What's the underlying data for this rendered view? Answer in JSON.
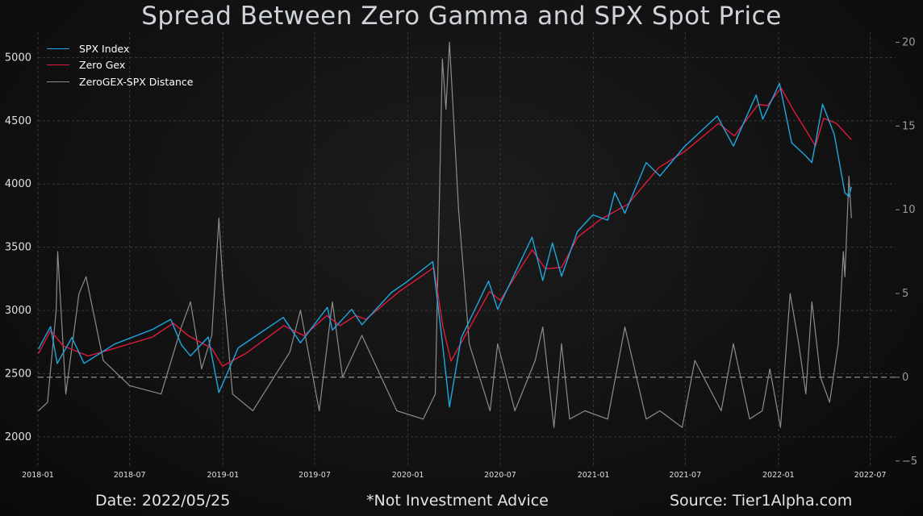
{
  "chart_data": {
    "type": "line",
    "title": "Spread Between Zero Gamma and SPX Spot Price",
    "x_ticks": [
      "2018-01",
      "2018-07",
      "2019-01",
      "2019-07",
      "2020-01",
      "2020-07",
      "2021-01",
      "2021-07",
      "2022-01",
      "2022-07"
    ],
    "y_left_ticks": [
      2000,
      2500,
      3000,
      3500,
      4000,
      4500,
      5000
    ],
    "y_right_ticks": [
      -5,
      0,
      5,
      10,
      15,
      20
    ],
    "ylim_left": [
      1770,
      5200
    ],
    "ylim_right": [
      -5.3,
      20.6
    ],
    "xlim": [
      "2018-01-01",
      "2022-08-20"
    ],
    "grid": true,
    "legend_position": "top-left",
    "zero_line_right": 0,
    "series": [
      {
        "name": "SPX Index",
        "axis": "left",
        "color": "#1ea7e0",
        "x": [
          "2018-01-02",
          "2018-01-26",
          "2018-02-08",
          "2018-03-09",
          "2018-04-02",
          "2018-06-01",
          "2018-08-15",
          "2018-09-20",
          "2018-10-11",
          "2018-10-29",
          "2018-12-03",
          "2018-12-24",
          "2019-01-31",
          "2019-04-30",
          "2019-06-03",
          "2019-07-26",
          "2019-08-05",
          "2019-09-12",
          "2019-10-02",
          "2019-11-29",
          "2019-12-31",
          "2020-02-19",
          "2020-03-09",
          "2020-03-23",
          "2020-04-15",
          "2020-06-08",
          "2020-06-26",
          "2020-09-02",
          "2020-09-23",
          "2020-10-12",
          "2020-10-30",
          "2020-11-30",
          "2020-12-31",
          "2021-01-29",
          "2021-02-12",
          "2021-03-04",
          "2021-04-15",
          "2021-05-12",
          "2021-06-30",
          "2021-09-02",
          "2021-10-04",
          "2021-11-18",
          "2021-12-01",
          "2022-01-03",
          "2022-01-27",
          "2022-02-23",
          "2022-03-08",
          "2022-03-29",
          "2022-04-21",
          "2022-05-12",
          "2022-05-20",
          "2022-05-25"
        ],
        "values": [
          2695,
          2872,
          2581,
          2786,
          2581,
          2734,
          2850,
          2930,
          2728,
          2641,
          2790,
          2351,
          2704,
          2945,
          2744,
          3025,
          2844,
          3009,
          2887,
          3141,
          3230,
          3386,
          2746,
          2237,
          2783,
          3232,
          3009,
          3580,
          3237,
          3534,
          3270,
          3622,
          3756,
          3714,
          3934,
          3768,
          4170,
          4063,
          4298,
          4537,
          4300,
          4704,
          4513,
          4796,
          4326,
          4225,
          4170,
          4631,
          4393,
          3930,
          3901,
          3978
        ]
      },
      {
        "name": "Zero Gex",
        "axis": "left",
        "color": "#e01a3c",
        "x": [
          "2018-01-02",
          "2018-01-26",
          "2018-02-20",
          "2018-04-10",
          "2018-06-01",
          "2018-08-15",
          "2018-09-25",
          "2018-10-25",
          "2018-12-10",
          "2018-12-31",
          "2019-02-15",
          "2019-05-01",
          "2019-06-10",
          "2019-07-25",
          "2019-08-20",
          "2019-09-20",
          "2019-10-10",
          "2019-12-15",
          "2020-01-31",
          "2020-02-21",
          "2020-03-10",
          "2020-03-26",
          "2020-04-20",
          "2020-06-10",
          "2020-07-01",
          "2020-09-02",
          "2020-09-28",
          "2020-10-30",
          "2020-12-01",
          "2021-01-15",
          "2021-03-10",
          "2021-05-10",
          "2021-07-01",
          "2021-09-05",
          "2021-10-06",
          "2021-11-22",
          "2021-12-10",
          "2022-01-06",
          "2022-01-31",
          "2022-02-25",
          "2022-03-15",
          "2022-03-31",
          "2022-04-25",
          "2022-05-25"
        ],
        "values": [
          2660,
          2840,
          2720,
          2640,
          2700,
          2790,
          2900,
          2800,
          2700,
          2560,
          2660,
          2880,
          2800,
          2960,
          2880,
          2960,
          2930,
          3150,
          3280,
          3340,
          2870,
          2600,
          2780,
          3150,
          3080,
          3480,
          3330,
          3340,
          3580,
          3720,
          3840,
          4130,
          4260,
          4480,
          4380,
          4630,
          4620,
          4760,
          4580,
          4420,
          4300,
          4520,
          4480,
          4350
        ]
      },
      {
        "name": "ZeroGEX-SPX Distance",
        "axis": "right",
        "color": "#8c8c8c",
        "x": [
          "2018-01-02",
          "2018-01-20",
          "2018-02-06",
          "2018-02-09",
          "2018-02-25",
          "2018-03-23",
          "2018-04-06",
          "2018-05-10",
          "2018-07-01",
          "2018-09-01",
          "2018-10-11",
          "2018-10-29",
          "2018-11-20",
          "2018-12-10",
          "2018-12-24",
          "2018-12-31",
          "2019-01-20",
          "2019-03-01",
          "2019-05-13",
          "2019-06-03",
          "2019-07-10",
          "2019-08-05",
          "2019-08-25",
          "2019-10-02",
          "2019-12-10",
          "2020-01-31",
          "2020-02-24",
          "2020-03-09",
          "2020-03-16",
          "2020-03-23",
          "2020-04-10",
          "2020-05-01",
          "2020-06-11",
          "2020-06-26",
          "2020-07-30",
          "2020-09-08",
          "2020-09-23",
          "2020-10-15",
          "2020-10-30",
          "2020-11-15",
          "2020-12-15",
          "2021-01-29",
          "2021-03-04",
          "2021-04-15",
          "2021-05-12",
          "2021-06-25",
          "2021-07-20",
          "2021-09-10",
          "2021-10-04",
          "2021-11-05",
          "2021-11-30",
          "2021-12-15",
          "2022-01-05",
          "2022-01-24",
          "2022-02-10",
          "2022-02-24",
          "2022-03-08",
          "2022-03-25",
          "2022-04-12",
          "2022-04-29",
          "2022-05-09",
          "2022-05-12",
          "2022-05-20",
          "2022-05-25"
        ],
        "values": [
          -2.0,
          -1.5,
          4.0,
          7.5,
          -1.0,
          5.0,
          6.0,
          1.0,
          -0.5,
          -1.0,
          3.0,
          4.5,
          0.5,
          2.5,
          9.5,
          6.0,
          -1.0,
          -2.0,
          1.5,
          4.0,
          -2.0,
          4.5,
          0.0,
          2.5,
          -2.0,
          -2.5,
          -1.0,
          19.0,
          16.0,
          20.0,
          10.0,
          2.0,
          -2.0,
          2.0,
          -2.0,
          1.0,
          3.0,
          -3.0,
          2.0,
          -2.5,
          -2.0,
          -2.5,
          3.0,
          -2.5,
          -2.0,
          -3.0,
          1.0,
          -2.0,
          2.0,
          -2.5,
          -2.0,
          0.5,
          -3.0,
          5.0,
          2.0,
          -1.0,
          4.5,
          0.0,
          -1.5,
          2.0,
          7.5,
          6.0,
          12.0,
          9.5
        ]
      }
    ]
  },
  "footer": {
    "date": "Date: 2022/05/25",
    "advice": "*Not Investment Advice",
    "source": "Source: Tier1Alpha.com"
  }
}
